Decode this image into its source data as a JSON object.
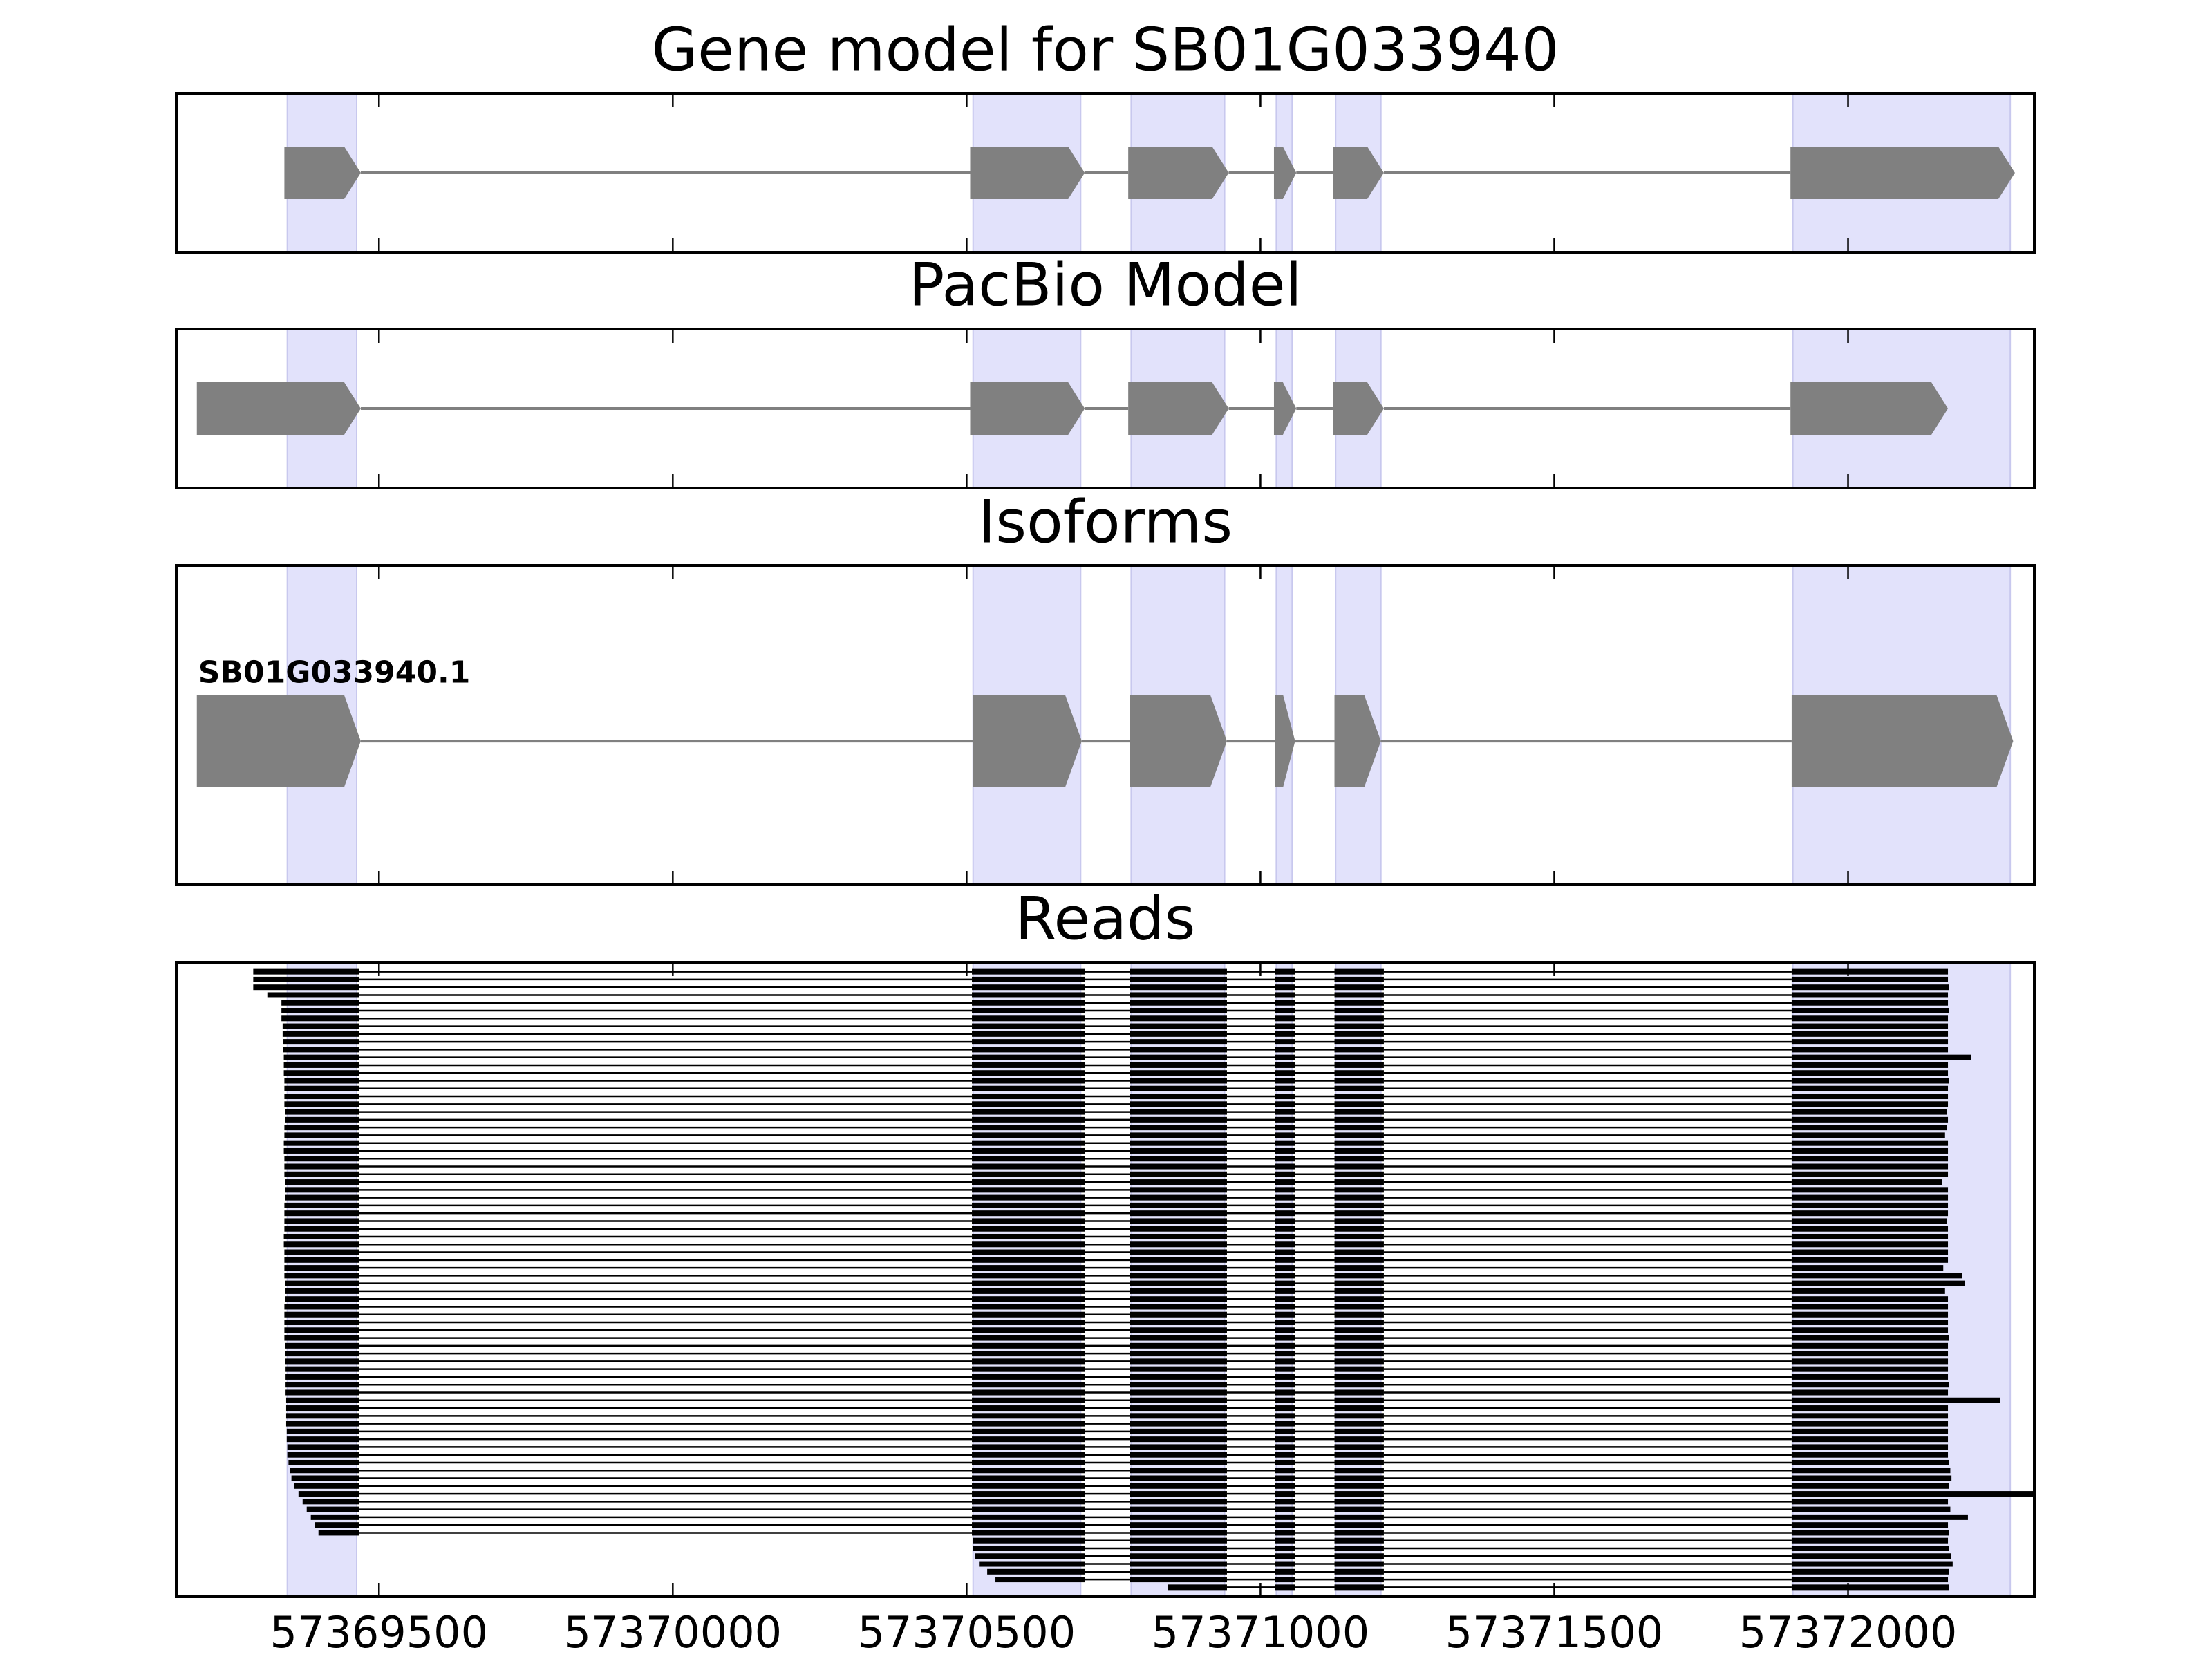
{
  "chart_data": {
    "type": "genome-tracks",
    "xlim": [
      57369155,
      57372317
    ],
    "xticks": [
      57369500,
      57370000,
      57370500,
      57371000,
      57371500,
      57372000
    ],
    "highlight": {
      "color": "#e2e2fb",
      "starts": [
        57369344,
        57370511,
        57370780,
        57371027,
        57371128,
        57371906
      ],
      "ends": [
        57369462,
        57370694,
        57370939,
        57371054,
        57371205,
        57372276
      ]
    },
    "tracks": [
      {
        "title": "Gene model for SB01G033940",
        "color": "#808080",
        "exon_starts": [
          57369339,
          57370506,
          57370775,
          57371023,
          57371123,
          57371902
        ],
        "exon_ends": [
          57369469,
          57370701,
          57370946,
          57371061,
          57371210,
          57372284
        ]
      },
      {
        "title": "PacBio Model",
        "color": "#808080",
        "exon_starts": [
          57369190,
          57370506,
          57370775,
          57371023,
          57371123,
          57371902
        ],
        "exon_ends": [
          57369469,
          57370701,
          57370946,
          57371061,
          57371210,
          57372170
        ]
      },
      {
        "title": "Isoforms",
        "label": "SB01G033940.1",
        "color": "#808080",
        "exon_starts": [
          57369190,
          57370511,
          57370778,
          57371025,
          57371126,
          57371904
        ],
        "exon_ends": [
          57369469,
          57370696,
          57370943,
          57371059,
          57371205,
          57372281
        ]
      }
    ],
    "reads": {
      "title": "Reads",
      "color": "#000000",
      "intron_starts": [
        57369466,
        57370701,
        57370943,
        57371059,
        57371210
      ],
      "intron_ends": [
        57370509,
        57370778,
        57371025,
        57371126,
        57371904
      ],
      "starts": [
        57369286,
        57369286,
        57369286,
        57369310,
        57369334,
        57369334,
        57369334,
        57369336,
        57369336,
        57369337,
        57369337,
        57369338,
        57369338,
        57369338,
        57369339,
        57369339,
        57369339,
        57369339,
        57369340,
        57369340,
        57369339,
        57369339,
        57369338,
        57369338,
        57369339,
        57369339,
        57369339,
        57369340,
        57369340,
        57369340,
        57369339,
        57369339,
        57369339,
        57369339,
        57369338,
        57369338,
        57369339,
        57369339,
        57369339,
        57369339,
        57369340,
        57369340,
        57369340,
        57369339,
        57369339,
        57369339,
        57369339,
        57369339,
        57369340,
        57369340,
        57369340,
        57369341,
        57369341,
        57369341,
        57369341,
        57369342,
        57369342,
        57369342,
        57369342,
        57369343,
        57369343,
        57369344,
        57369344,
        57369346,
        57369348,
        57369351,
        57369356,
        57369363,
        57369370,
        57369377,
        57369384,
        57369391,
        57369397,
        57370511,
        57370511,
        57370514,
        57370521,
        57370535,
        57370549,
        57370842
      ],
      "ends": [
        57372170,
        57372170,
        57372172,
        57372170,
        57372170,
        57372172,
        57372170,
        57372170,
        57372170,
        57372170,
        57372170,
        57372209,
        57372170,
        57372170,
        57372172,
        57372170,
        57372170,
        57372170,
        57372168,
        57372170,
        57372168,
        57372165,
        57372170,
        57372170,
        57372170,
        57372170,
        57372170,
        57372160,
        57372170,
        57372170,
        57372170,
        57372170,
        57372168,
        57372170,
        57372170,
        57372170,
        57372170,
        57372170,
        57372162,
        57372194,
        57372199,
        57372165,
        57372170,
        57372170,
        57372170,
        57372170,
        57372170,
        57372172,
        57372170,
        57372170,
        57372170,
        57372170,
        57372170,
        57372172,
        57372170,
        57372259,
        57372170,
        57372170,
        57372170,
        57372170,
        57372170,
        57372170,
        57372170,
        57372172,
        57372174,
        57372176,
        57372172,
        57372317,
        57372170,
        57372174,
        57372204,
        57372170,
        57372172,
        57372170,
        57372172,
        57372175,
        57372178,
        57372172,
        57372170,
        57372172
      ]
    }
  }
}
